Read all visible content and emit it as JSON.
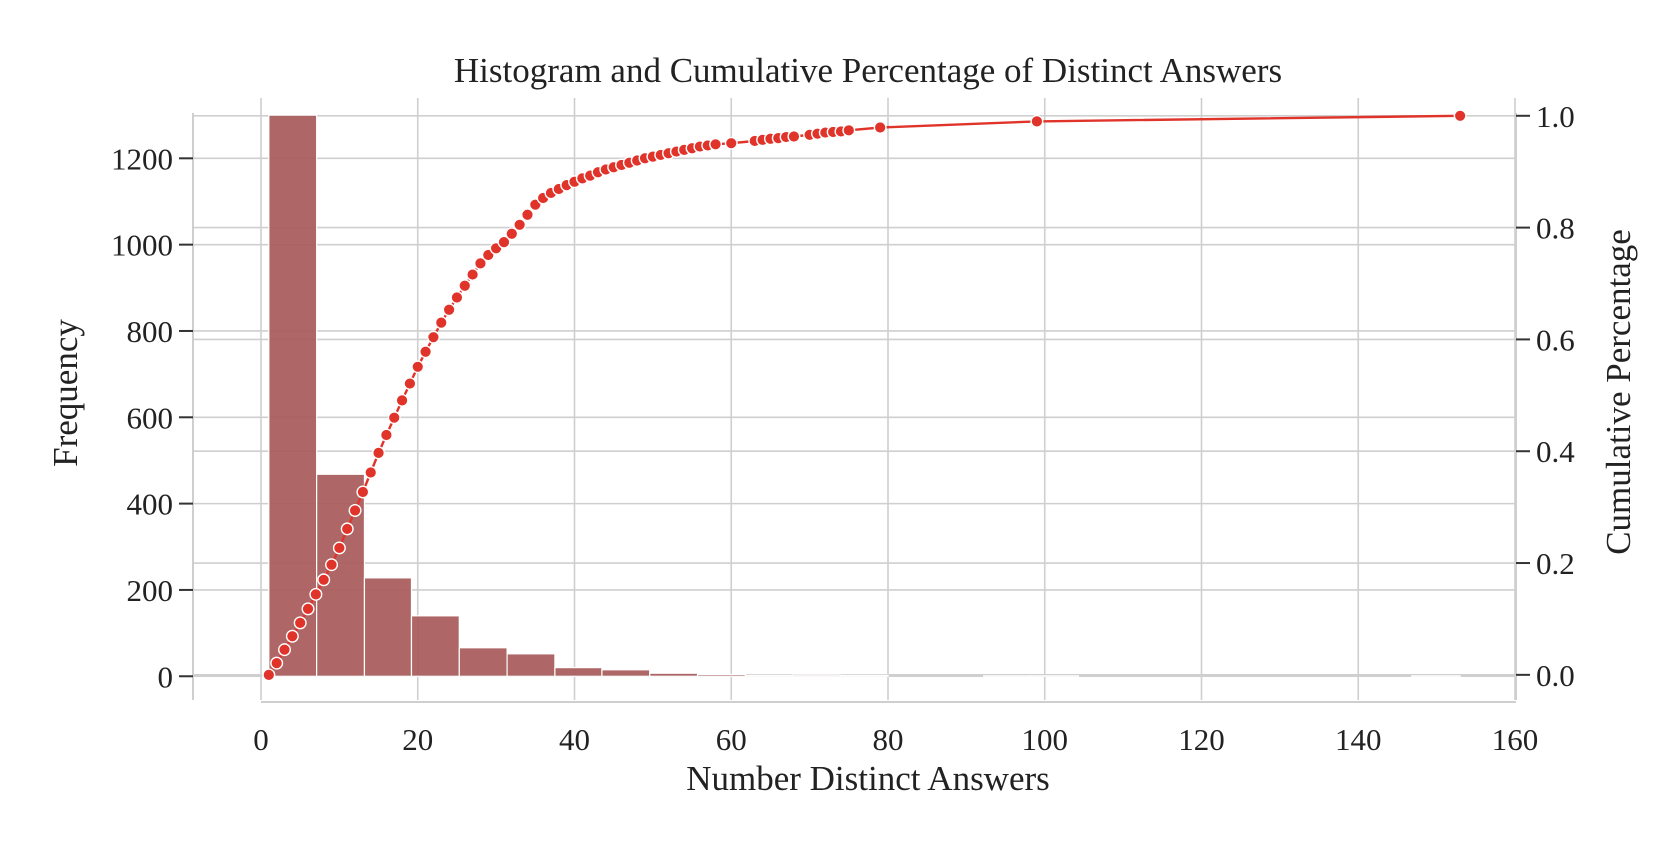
{
  "chart_data": {
    "type": "bar",
    "title": "Histogram and Cumulative Percentage of Distinct Answers",
    "xlabel": "Number Distinct Answers",
    "ylabel": "Frequency",
    "y2label": "Cumulative Percentage",
    "xlim": [
      0,
      160
    ],
    "ylim": [
      -55,
      1305
    ],
    "y2lim": [
      -0.045,
      1.005
    ],
    "x_ticks": [
      0,
      20,
      40,
      60,
      80,
      100,
      120,
      140,
      160
    ],
    "y_ticks": [
      0,
      200,
      400,
      600,
      800,
      1000,
      1200
    ],
    "y2_ticks": [
      0.0,
      0.2,
      0.4,
      0.6,
      0.8,
      1.0
    ],
    "x_tick_labels": [
      "0",
      "20",
      "40",
      "60",
      "80",
      "100",
      "120",
      "140",
      "160"
    ],
    "y_tick_labels": [
      "0",
      "200",
      "400",
      "600",
      "800",
      "1000",
      "1200"
    ],
    "y2_tick_labels": [
      "0.0",
      "0.2",
      "0.4",
      "0.6",
      "0.8",
      "1.0"
    ],
    "grid": true,
    "series": [
      {
        "kind": "histogram",
        "color": "#a85a5a",
        "bins": [
          {
            "x0": 1.0,
            "x1": 7.1,
            "count": 1300
          },
          {
            "x0": 7.1,
            "x1": 13.2,
            "count": 468
          },
          {
            "x0": 13.2,
            "x1": 19.2,
            "count": 228
          },
          {
            "x0": 19.2,
            "x1": 25.3,
            "count": 140
          },
          {
            "x0": 25.3,
            "x1": 31.4,
            "count": 66
          },
          {
            "x0": 31.4,
            "x1": 37.5,
            "count": 52
          },
          {
            "x0": 37.5,
            "x1": 43.5,
            "count": 20
          },
          {
            "x0": 43.5,
            "x1": 49.6,
            "count": 15
          },
          {
            "x0": 49.6,
            "x1": 55.7,
            "count": 7
          },
          {
            "x0": 55.7,
            "x1": 61.8,
            "count": 4
          },
          {
            "x0": 61.8,
            "x1": 67.8,
            "count": 2
          },
          {
            "x0": 67.8,
            "x1": 73.9,
            "count": 3
          },
          {
            "x0": 73.9,
            "x1": 80.0,
            "count": 2
          },
          {
            "x0": 80.0,
            "x1": 86.1,
            "count": 0
          },
          {
            "x0": 86.1,
            "x1": 92.2,
            "count": 0
          },
          {
            "x0": 92.2,
            "x1": 98.2,
            "count": 1
          },
          {
            "x0": 98.2,
            "x1": 104.3,
            "count": 1
          },
          {
            "x0": 104.3,
            "x1": 110.4,
            "count": 0
          },
          {
            "x0": 110.4,
            "x1": 116.5,
            "count": 0
          },
          {
            "x0": 116.5,
            "x1": 122.5,
            "count": 0
          },
          {
            "x0": 122.5,
            "x1": 128.6,
            "count": 0
          },
          {
            "x0": 128.6,
            "x1": 134.7,
            "count": 0
          },
          {
            "x0": 134.7,
            "x1": 140.8,
            "count": 0
          },
          {
            "x0": 140.8,
            "x1": 146.8,
            "count": 0
          },
          {
            "x0": 146.8,
            "x1": 153.0,
            "count": 1
          }
        ]
      },
      {
        "kind": "line",
        "axis": "right",
        "color": "#e0342a",
        "marker": "circle",
        "x": [
          1,
          2,
          3,
          4,
          5,
          6,
          7,
          8,
          9,
          10,
          11,
          12,
          13,
          14,
          15,
          16,
          17,
          18,
          19,
          20,
          21,
          22,
          23,
          24,
          25,
          26,
          27,
          28,
          29,
          30,
          31,
          32,
          33,
          34,
          35,
          36,
          37,
          38,
          39,
          40,
          41,
          42,
          43,
          44,
          45,
          46,
          47,
          48,
          49,
          50,
          51,
          52,
          53,
          54,
          55,
          56,
          57,
          58,
          60,
          63,
          64,
          65,
          66,
          67,
          68,
          70,
          71,
          72,
          73,
          74,
          75,
          79,
          99,
          153
        ],
        "y": [
          0.0,
          0.021,
          0.045,
          0.069,
          0.093,
          0.118,
          0.144,
          0.17,
          0.197,
          0.227,
          0.261,
          0.294,
          0.327,
          0.362,
          0.397,
          0.429,
          0.46,
          0.491,
          0.521,
          0.551,
          0.578,
          0.604,
          0.63,
          0.653,
          0.675,
          0.696,
          0.716,
          0.736,
          0.751,
          0.763,
          0.774,
          0.789,
          0.805,
          0.823,
          0.841,
          0.853,
          0.862,
          0.869,
          0.876,
          0.882,
          0.888,
          0.893,
          0.899,
          0.904,
          0.908,
          0.912,
          0.916,
          0.92,
          0.924,
          0.927,
          0.93,
          0.933,
          0.936,
          0.939,
          0.942,
          0.945,
          0.947,
          0.949,
          0.951,
          0.955,
          0.957,
          0.959,
          0.96,
          0.962,
          0.963,
          0.966,
          0.968,
          0.97,
          0.971,
          0.972,
          0.974,
          0.979,
          0.99,
          1.0
        ]
      }
    ]
  }
}
